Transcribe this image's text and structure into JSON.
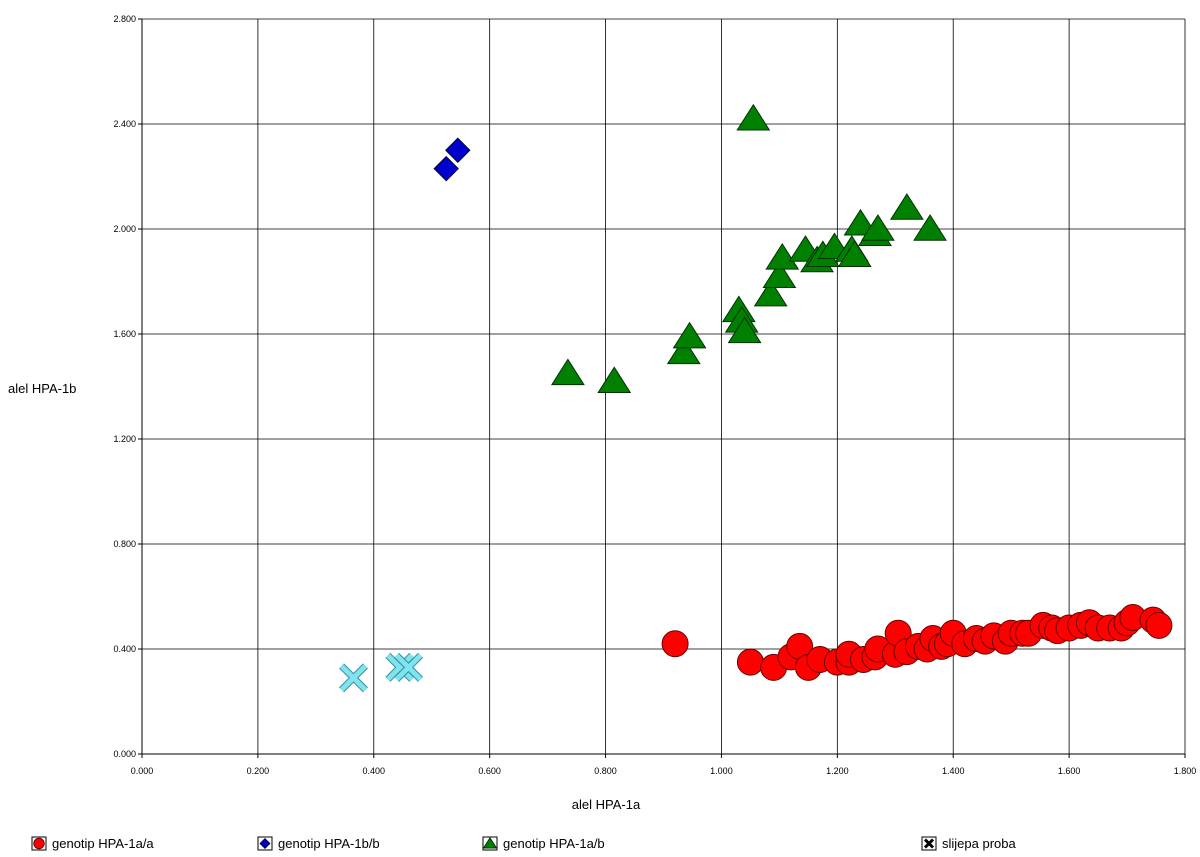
{
  "chart_data": {
    "type": "scatter",
    "xlabel": "alel HPA-1a",
    "ylabel": "alel HPA-1b",
    "xlim": [
      0,
      1.8
    ],
    "ylim": [
      0,
      2.8
    ],
    "x_ticks": [
      "0.000",
      "0.200",
      "0.400",
      "0.600",
      "0.800",
      "1.000",
      "1.200",
      "1.400",
      "1.600",
      "1.800"
    ],
    "y_ticks": [
      "0.000",
      "0.400",
      "0.800",
      "1.200",
      "1.600",
      "2.000",
      "2.400",
      "2.800"
    ],
    "grid": true,
    "legend_position": "bottom",
    "series": [
      {
        "name": "genotip HPA-1a/a",
        "marker": "circle",
        "color": "#ff0000",
        "points": [
          [
            0.92,
            0.42
          ],
          [
            1.05,
            0.35
          ],
          [
            1.09,
            0.33
          ],
          [
            1.12,
            0.37
          ],
          [
            1.135,
            0.41
          ],
          [
            1.15,
            0.33
          ],
          [
            1.17,
            0.36
          ],
          [
            1.2,
            0.35
          ],
          [
            1.22,
            0.35
          ],
          [
            1.22,
            0.38
          ],
          [
            1.245,
            0.36
          ],
          [
            1.265,
            0.37
          ],
          [
            1.27,
            0.4
          ],
          [
            1.3,
            0.38
          ],
          [
            1.305,
            0.46
          ],
          [
            1.32,
            0.39
          ],
          [
            1.34,
            0.41
          ],
          [
            1.355,
            0.4
          ],
          [
            1.365,
            0.44
          ],
          [
            1.38,
            0.41
          ],
          [
            1.39,
            0.42
          ],
          [
            1.4,
            0.46
          ],
          [
            1.42,
            0.42
          ],
          [
            1.44,
            0.44
          ],
          [
            1.455,
            0.43
          ],
          [
            1.47,
            0.45
          ],
          [
            1.49,
            0.43
          ],
          [
            1.5,
            0.46
          ],
          [
            1.52,
            0.46
          ],
          [
            1.53,
            0.46
          ],
          [
            1.555,
            0.49
          ],
          [
            1.57,
            0.48
          ],
          [
            1.58,
            0.47
          ],
          [
            1.6,
            0.48
          ],
          [
            1.62,
            0.49
          ],
          [
            1.635,
            0.5
          ],
          [
            1.65,
            0.48
          ],
          [
            1.67,
            0.48
          ],
          [
            1.69,
            0.48
          ],
          [
            1.7,
            0.5
          ],
          [
            1.71,
            0.52
          ],
          [
            1.745,
            0.51
          ],
          [
            1.755,
            0.49
          ]
        ]
      },
      {
        "name": "genotip HPA-1b/b",
        "marker": "diamond",
        "color": "#0000cc",
        "points": [
          [
            0.525,
            2.23
          ],
          [
            0.545,
            2.3
          ]
        ]
      },
      {
        "name": "genotip HPA-1a/b",
        "marker": "triangle",
        "color": "#008000",
        "points": [
          [
            0.735,
            1.45
          ],
          [
            0.815,
            1.42
          ],
          [
            0.935,
            1.53
          ],
          [
            0.945,
            1.59
          ],
          [
            1.03,
            1.69
          ],
          [
            1.035,
            1.65
          ],
          [
            1.04,
            1.61
          ],
          [
            1.055,
            2.42
          ],
          [
            1.085,
            1.75
          ],
          [
            1.1,
            1.82
          ],
          [
            1.105,
            1.89
          ],
          [
            1.145,
            1.92
          ],
          [
            1.165,
            1.88
          ],
          [
            1.175,
            1.9
          ],
          [
            1.195,
            1.93
          ],
          [
            1.225,
            1.92
          ],
          [
            1.23,
            1.9
          ],
          [
            1.24,
            2.02
          ],
          [
            1.265,
            1.98
          ],
          [
            1.27,
            2.0
          ],
          [
            1.32,
            2.08
          ],
          [
            1.36,
            2.0
          ]
        ]
      },
      {
        "name": "slijepa proba",
        "marker": "x",
        "color": "#7fe3f0",
        "points": [
          [
            0.365,
            0.29
          ],
          [
            0.445,
            0.33
          ],
          [
            0.46,
            0.33
          ]
        ]
      }
    ]
  }
}
